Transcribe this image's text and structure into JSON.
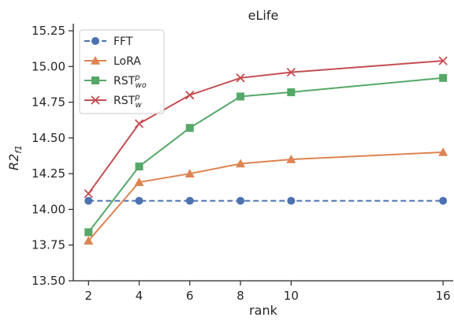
{
  "chart_data": {
    "type": "line",
    "title": "eLife",
    "xlabel": "rank",
    "ylabel": "R2",
    "ylabel_sub": "f1",
    "x": [
      2,
      4,
      6,
      8,
      10,
      16
    ],
    "xlim": [
      1.4,
      16.4
    ],
    "ylim": [
      13.5,
      15.3
    ],
    "xticks": [
      2,
      4,
      6,
      8,
      10,
      16
    ],
    "yticks": [
      13.5,
      13.75,
      14.0,
      14.25,
      14.5,
      14.75,
      15.0,
      15.25
    ],
    "ytick_labels": [
      "13.50",
      "13.75",
      "14.00",
      "14.25",
      "14.50",
      "14.75",
      "15.00",
      "15.25"
    ],
    "legend_position": "upper-left",
    "grid": false,
    "series": [
      {
        "name": "FFT",
        "name_sup": "",
        "name_sub": "",
        "color": "#4c72b0",
        "marker": "circle",
        "dashed": true,
        "values": [
          14.06,
          14.06,
          14.06,
          14.06,
          14.06,
          14.06
        ]
      },
      {
        "name": "LoRA",
        "name_sup": "",
        "name_sub": "",
        "color": "#dd8452",
        "marker": "triangle",
        "dashed": false,
        "values": [
          13.78,
          14.19,
          14.25,
          14.32,
          14.35,
          14.4
        ]
      },
      {
        "name": "RST",
        "name_sup": "p",
        "name_sub": "wo",
        "color": "#55a868",
        "marker": "square",
        "dashed": false,
        "values": [
          13.84,
          14.3,
          14.57,
          14.79,
          14.82,
          14.92
        ]
      },
      {
        "name": "RST",
        "name_sup": "p",
        "name_sub": "w",
        "color": "#c44e52",
        "marker": "x",
        "dashed": false,
        "values": [
          14.11,
          14.6,
          14.8,
          14.92,
          14.96,
          15.04
        ]
      }
    ]
  }
}
